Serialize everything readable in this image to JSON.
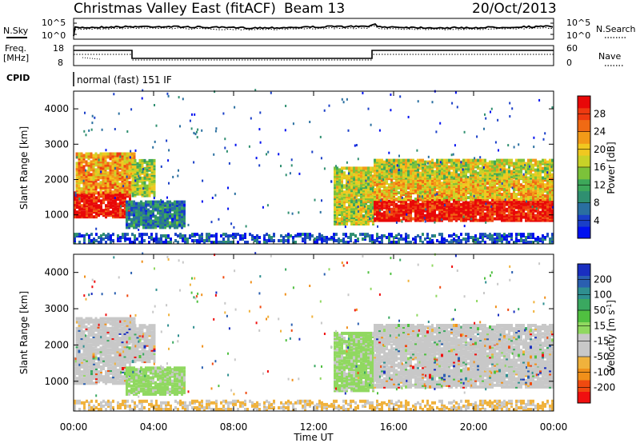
{
  "header": {
    "site": "Christmas Valley East (fitACF)",
    "beam": "Beam 13",
    "date": "20/Oct/2013"
  },
  "left_labels": {
    "nsky": "N.Sky",
    "freq_line1": "Freq.",
    "freq_line2": "[MHz]",
    "cpid": "CPID"
  },
  "right_labels": {
    "nsearch": "N.Search",
    "nave": "Nave"
  },
  "noise_panel": {
    "left_ticks": [
      "10^5",
      "10^0"
    ],
    "right_ticks": [
      "10^5",
      "10^0"
    ]
  },
  "freq_panel": {
    "left_ticks": [
      "18",
      "8"
    ],
    "right_ticks": [
      "60",
      "0"
    ]
  },
  "cpid_panel": {
    "text": "normal (fast) 151 IF"
  },
  "chart_data": [
    {
      "type": "heatmap",
      "panel": "power",
      "ylabel": "Slant Range [km]",
      "yticks": [
        1000,
        2000,
        3000,
        4000
      ],
      "ylim": [
        180,
        4500
      ],
      "xlim": [
        0,
        24
      ],
      "colorbar": {
        "label": "Power [dB]",
        "ticks": [
          4,
          8,
          12,
          16,
          20,
          24,
          28
        ],
        "range": [
          0,
          32
        ],
        "colors": [
          "#0010f0",
          "#1a3fc8",
          "#2a6fa0",
          "#2f8f70",
          "#3da85a",
          "#7cc23a",
          "#c8d228",
          "#f0c820",
          "#f29a18",
          "#f06a14",
          "#ee3a10",
          "#e80808"
        ]
      }
    },
    {
      "type": "heatmap",
      "panel": "velocity",
      "ylabel": "Slant Range [km]",
      "yticks": [
        1000,
        2000,
        3000,
        4000
      ],
      "ylim": [
        180,
        4500
      ],
      "xlim": [
        0,
        24
      ],
      "xticks": [
        "00:00",
        "04:00",
        "08:00",
        "12:00",
        "16:00",
        "20:00",
        "00:00"
      ],
      "xlabel": "Time UT",
      "colorbar": {
        "label_main": "Velocity [m s",
        "label_sup": "-1",
        "label_close": "]",
        "ticks": [
          200,
          100,
          50,
          15,
          -15,
          -50,
          -100,
          -200
        ],
        "colors": [
          "#f01010",
          "#f04a10",
          "#f0901a",
          "#f0b23c",
          "#c8c8c8",
          "#c8c8c8",
          "#90d860",
          "#50c040",
          "#3aa860",
          "#2f8f90",
          "#2a5fb0",
          "#1a2fc0"
        ]
      }
    }
  ]
}
